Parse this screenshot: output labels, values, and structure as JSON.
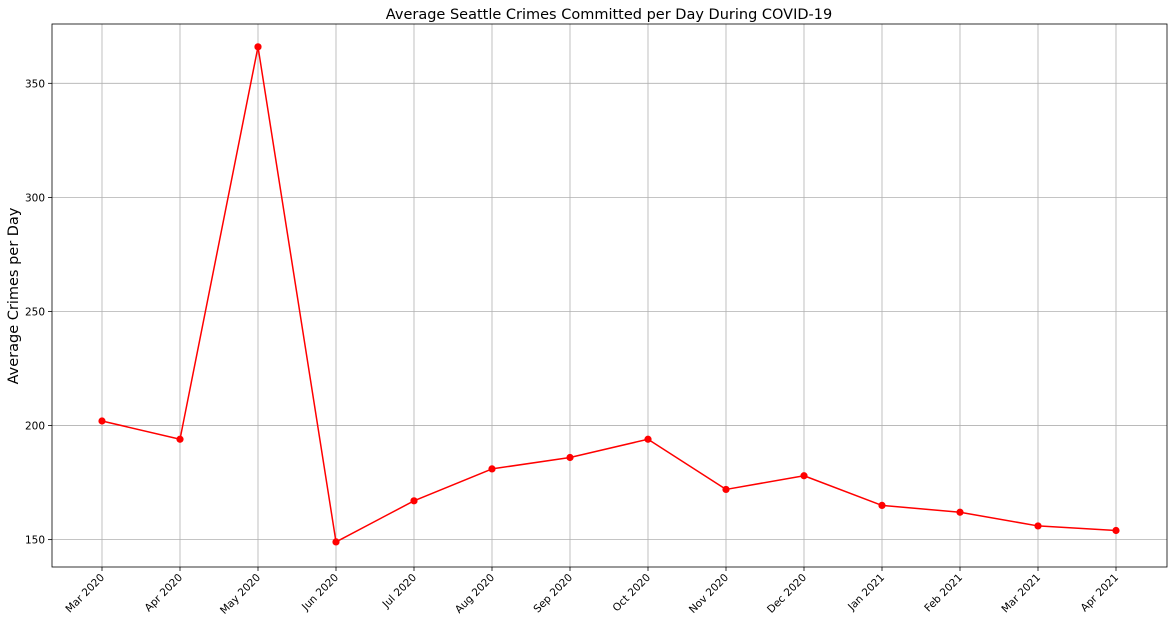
{
  "chart_data": {
    "type": "line",
    "title": "Average Seattle Crimes Committed per Day During COVID-19",
    "xlabel": "",
    "ylabel": "Average Crimes per Day",
    "categories": [
      "Mar 2020",
      "Apr 2020",
      "May 2020",
      "Jun 2020",
      "Jul 2020",
      "Aug 2020",
      "Sep 2020",
      "Oct 2020",
      "Nov 2020",
      "Dec 2020",
      "Jan 2021",
      "Feb 2021",
      "Mar 2021",
      "Apr 2021"
    ],
    "series": [
      {
        "values": [
          202,
          194,
          366,
          149,
          167,
          181,
          186,
          194,
          172,
          178,
          165,
          162,
          156,
          154
        ],
        "color": "#ff0000",
        "marker": "circle"
      }
    ],
    "yticks": [
      150,
      200,
      250,
      300,
      350
    ],
    "ylim": [
      138,
      376
    ],
    "grid": true,
    "grid_color": "#b0b0b0",
    "legend": "none"
  }
}
